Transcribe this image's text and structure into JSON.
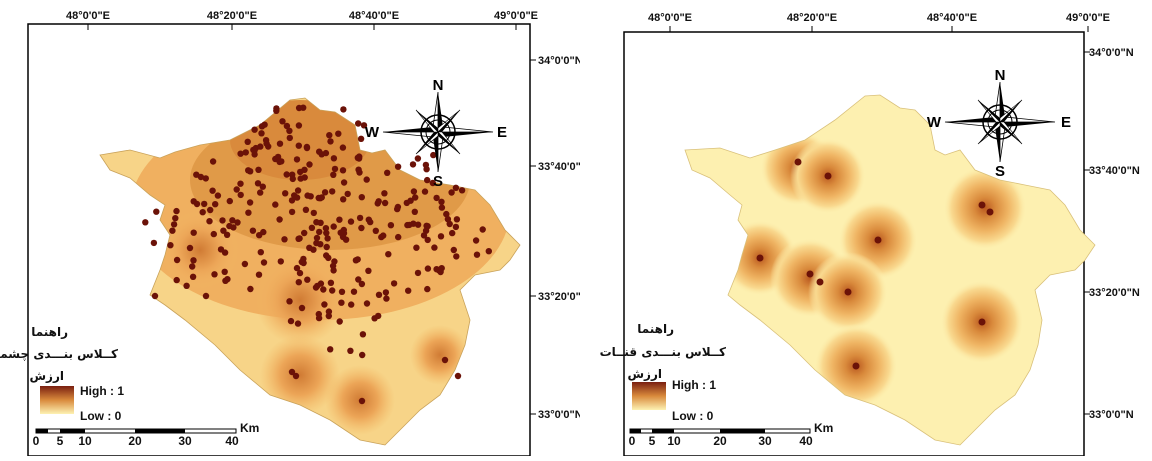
{
  "colors": {
    "low": "#fdf2b3",
    "mid_low": "#fbd98c",
    "mid": "#f3b865",
    "mid_high": "#d98a3c",
    "high": "#7a1f10",
    "point": "#6b1208",
    "frame": "#000000"
  },
  "maps": [
    {
      "name": "springs",
      "lon_labels": [
        "48°0'0\"E",
        "48°20'0\"E",
        "48°40'0\"E",
        "49°0'0\"E"
      ],
      "lat_labels": [
        "34°0'0\"N",
        "33°40'0\"N",
        "33°20'0\"N",
        "33°0'0\"N"
      ],
      "compass": {
        "n": "N",
        "s": "S",
        "e": "E",
        "w": "W"
      },
      "legend": {
        "title": "راهنما",
        "layer": "کــلاس بنـــدی چشمه",
        "value_label": "ارزش",
        "high": "High : 1",
        "low": "Low : 0"
      },
      "scale": {
        "ticks": [
          "0",
          "5",
          "10",
          "20",
          "30",
          "40"
        ],
        "unit": "Km"
      }
    },
    {
      "name": "qanats",
      "lon_labels": [
        "48°0'0\"E",
        "48°20'0\"E",
        "48°40'0\"E",
        "49°0'0\"E"
      ],
      "lat_labels": [
        "34°0'0\"N",
        "33°40'0\"N",
        "33°20'0\"N",
        "33°0'0\"N"
      ],
      "compass": {
        "n": "N",
        "s": "S",
        "e": "E",
        "w": "W"
      },
      "legend": {
        "title": "راهنما",
        "layer": "کــلاس بنـــدی قنــات",
        "value_label": "ارزش",
        "high": "High : 1",
        "low": "Low : 0"
      },
      "scale": {
        "ticks": [
          "0",
          "5",
          "10",
          "20",
          "30",
          "40"
        ],
        "unit": "Km"
      }
    }
  ]
}
